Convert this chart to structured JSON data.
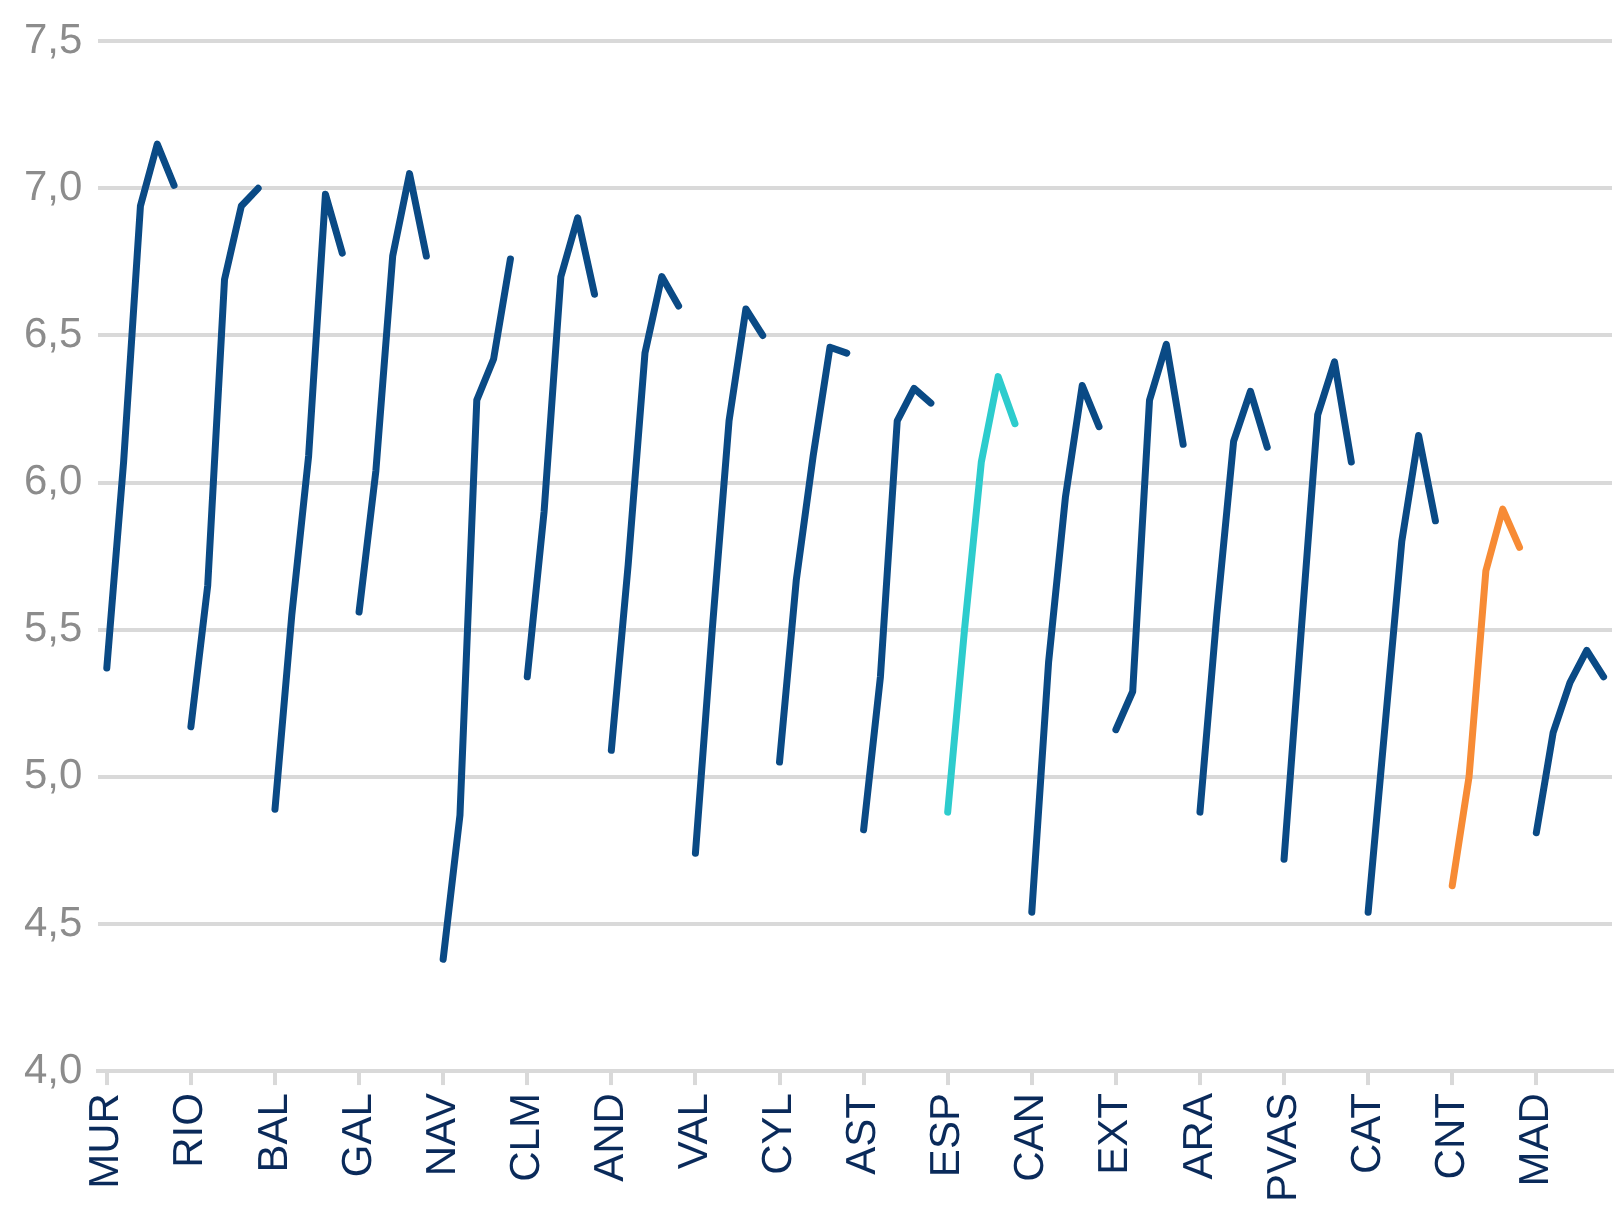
{
  "chart_data": {
    "type": "line",
    "categories": [
      "MUR",
      null,
      null,
      null,
      null,
      "RIO",
      null,
      null,
      null,
      null,
      "BAL",
      null,
      null,
      null,
      null,
      "GAL",
      null,
      null,
      null,
      null,
      "NAV",
      null,
      null,
      null,
      null,
      "CLM",
      null,
      null,
      null,
      null,
      "AND",
      null,
      null,
      null,
      null,
      "VAL",
      null,
      null,
      null,
      null,
      "CYL",
      null,
      null,
      null,
      null,
      "AST",
      null,
      null,
      null,
      null,
      "ESP",
      null,
      null,
      null,
      null,
      "CAN",
      null,
      null,
      null,
      null,
      "EXT",
      null,
      null,
      null,
      null,
      "ARA",
      null,
      null,
      null,
      null,
      "PVAS",
      null,
      null,
      null,
      null,
      "CAT",
      null,
      null,
      null,
      null,
      "CNT",
      null,
      null,
      null,
      null,
      "MAD",
      null,
      null,
      null,
      null
    ],
    "series": [
      {
        "color": "#0a4a85",
        "values": [
          5.37,
          6.07,
          6.94,
          7.15,
          7.01,
          null,
          null,
          null,
          null,
          null,
          null,
          null,
          null,
          null,
          null,
          null,
          null,
          null,
          null,
          null,
          null,
          null,
          null,
          null,
          null,
          null,
          null,
          null,
          null,
          null,
          null,
          null,
          null,
          null,
          null,
          null,
          null,
          null,
          null,
          null,
          null,
          null,
          null,
          null,
          null,
          null,
          null,
          null,
          null,
          null,
          null,
          null,
          null,
          null,
          null,
          null,
          null,
          null,
          null,
          null,
          null,
          null,
          null,
          null,
          null,
          null,
          null,
          null,
          null,
          null,
          null,
          null,
          null,
          null,
          null,
          null,
          null,
          null,
          null,
          null,
          null,
          null,
          null,
          null,
          null,
          null,
          null,
          null,
          null,
          null
        ]
      },
      {
        "color": "#0a4a85",
        "values": [
          null,
          null,
          null,
          null,
          null,
          5.17,
          5.65,
          6.69,
          6.94,
          7.0,
          null,
          null,
          null,
          null,
          null,
          null,
          null,
          null,
          null,
          null,
          null,
          null,
          null,
          null,
          null,
          null,
          null,
          null,
          null,
          null,
          null,
          null,
          null,
          null,
          null,
          null,
          null,
          null,
          null,
          null,
          null,
          null,
          null,
          null,
          null,
          null,
          null,
          null,
          null,
          null,
          null,
          null,
          null,
          null,
          null,
          null,
          null,
          null,
          null,
          null,
          null,
          null,
          null,
          null,
          null,
          null,
          null,
          null,
          null,
          null,
          null,
          null,
          null,
          null,
          null,
          null,
          null,
          null,
          null,
          null,
          null,
          null,
          null,
          null,
          null,
          null,
          null,
          null,
          null,
          null
        ]
      },
      {
        "color": "#0a4a85",
        "values": [
          null,
          null,
          null,
          null,
          null,
          null,
          null,
          null,
          null,
          null,
          4.89,
          5.55,
          6.09,
          6.98,
          6.78,
          null,
          null,
          null,
          null,
          null,
          null,
          null,
          null,
          null,
          null,
          null,
          null,
          null,
          null,
          null,
          null,
          null,
          null,
          null,
          null,
          null,
          null,
          null,
          null,
          null,
          null,
          null,
          null,
          null,
          null,
          null,
          null,
          null,
          null,
          null,
          null,
          null,
          null,
          null,
          null,
          null,
          null,
          null,
          null,
          null,
          null,
          null,
          null,
          null,
          null,
          null,
          null,
          null,
          null,
          null,
          null,
          null,
          null,
          null,
          null,
          null,
          null,
          null,
          null,
          null,
          null,
          null,
          null,
          null,
          null,
          null,
          null,
          null,
          null,
          null
        ]
      },
      {
        "color": "#0a4a85",
        "values": [
          null,
          null,
          null,
          null,
          null,
          null,
          null,
          null,
          null,
          null,
          null,
          null,
          null,
          null,
          null,
          5.56,
          6.04,
          6.77,
          7.05,
          6.77,
          null,
          null,
          null,
          null,
          null,
          null,
          null,
          null,
          null,
          null,
          null,
          null,
          null,
          null,
          null,
          null,
          null,
          null,
          null,
          null,
          null,
          null,
          null,
          null,
          null,
          null,
          null,
          null,
          null,
          null,
          null,
          null,
          null,
          null,
          null,
          null,
          null,
          null,
          null,
          null,
          null,
          null,
          null,
          null,
          null,
          null,
          null,
          null,
          null,
          null,
          null,
          null,
          null,
          null,
          null,
          null,
          null,
          null,
          null,
          null,
          null,
          null,
          null,
          null,
          null,
          null,
          null,
          null,
          null,
          null
        ]
      },
      {
        "color": "#0a4a85",
        "values": [
          null,
          null,
          null,
          null,
          null,
          null,
          null,
          null,
          null,
          null,
          null,
          null,
          null,
          null,
          null,
          null,
          null,
          null,
          null,
          null,
          4.38,
          4.87,
          6.28,
          6.42,
          6.76,
          null,
          null,
          null,
          null,
          null,
          null,
          null,
          null,
          null,
          null,
          null,
          null,
          null,
          null,
          null,
          null,
          null,
          null,
          null,
          null,
          null,
          null,
          null,
          null,
          null,
          null,
          null,
          null,
          null,
          null,
          null,
          null,
          null,
          null,
          null,
          null,
          null,
          null,
          null,
          null,
          null,
          null,
          null,
          null,
          null,
          null,
          null,
          null,
          null,
          null,
          null,
          null,
          null,
          null,
          null,
          null,
          null,
          null,
          null,
          null,
          null,
          null,
          null,
          null,
          null
        ]
      },
      {
        "color": "#0a4a85",
        "values": [
          null,
          null,
          null,
          null,
          null,
          null,
          null,
          null,
          null,
          null,
          null,
          null,
          null,
          null,
          null,
          null,
          null,
          null,
          null,
          null,
          null,
          null,
          null,
          null,
          null,
          5.34,
          5.9,
          6.7,
          6.9,
          6.64,
          null,
          null,
          null,
          null,
          null,
          null,
          null,
          null,
          null,
          null,
          null,
          null,
          null,
          null,
          null,
          null,
          null,
          null,
          null,
          null,
          null,
          null,
          null,
          null,
          null,
          null,
          null,
          null,
          null,
          null,
          null,
          null,
          null,
          null,
          null,
          null,
          null,
          null,
          null,
          null,
          null,
          null,
          null,
          null,
          null,
          null,
          null,
          null,
          null,
          null,
          null,
          null,
          null,
          null,
          null,
          null,
          null,
          null,
          null,
          null
        ]
      },
      {
        "color": "#0a4a85",
        "values": [
          null,
          null,
          null,
          null,
          null,
          null,
          null,
          null,
          null,
          null,
          null,
          null,
          null,
          null,
          null,
          null,
          null,
          null,
          null,
          null,
          null,
          null,
          null,
          null,
          null,
          null,
          null,
          null,
          null,
          null,
          5.09,
          5.72,
          6.44,
          6.7,
          6.6,
          null,
          null,
          null,
          null,
          null,
          null,
          null,
          null,
          null,
          null,
          null,
          null,
          null,
          null,
          null,
          null,
          null,
          null,
          null,
          null,
          null,
          null,
          null,
          null,
          null,
          null,
          null,
          null,
          null,
          null,
          null,
          null,
          null,
          null,
          null,
          null,
          null,
          null,
          null,
          null,
          null,
          null,
          null,
          null,
          null,
          null,
          null,
          null,
          null,
          null,
          null,
          null,
          null,
          null,
          null
        ]
      },
      {
        "color": "#0a4a85",
        "values": [
          null,
          null,
          null,
          null,
          null,
          null,
          null,
          null,
          null,
          null,
          null,
          null,
          null,
          null,
          null,
          null,
          null,
          null,
          null,
          null,
          null,
          null,
          null,
          null,
          null,
          null,
          null,
          null,
          null,
          null,
          null,
          null,
          null,
          null,
          null,
          4.74,
          5.5,
          6.21,
          6.59,
          6.5,
          null,
          null,
          null,
          null,
          null,
          null,
          null,
          null,
          null,
          null,
          null,
          null,
          null,
          null,
          null,
          null,
          null,
          null,
          null,
          null,
          null,
          null,
          null,
          null,
          null,
          null,
          null,
          null,
          null,
          null,
          null,
          null,
          null,
          null,
          null,
          null,
          null,
          null,
          null,
          null,
          null,
          null,
          null,
          null,
          null,
          null,
          null,
          null,
          null,
          null
        ]
      },
      {
        "color": "#0a4a85",
        "values": [
          null,
          null,
          null,
          null,
          null,
          null,
          null,
          null,
          null,
          null,
          null,
          null,
          null,
          null,
          null,
          null,
          null,
          null,
          null,
          null,
          null,
          null,
          null,
          null,
          null,
          null,
          null,
          null,
          null,
          null,
          null,
          null,
          null,
          null,
          null,
          null,
          null,
          null,
          null,
          null,
          5.05,
          5.67,
          6.09,
          6.46,
          6.44,
          null,
          null,
          null,
          null,
          null,
          null,
          null,
          null,
          null,
          null,
          null,
          null,
          null,
          null,
          null,
          null,
          null,
          null,
          null,
          null,
          null,
          null,
          null,
          null,
          null,
          null,
          null,
          null,
          null,
          null,
          null,
          null,
          null,
          null,
          null,
          null,
          null,
          null,
          null,
          null,
          null,
          null,
          null,
          null,
          null
        ]
      },
      {
        "color": "#0a4a85",
        "values": [
          null,
          null,
          null,
          null,
          null,
          null,
          null,
          null,
          null,
          null,
          null,
          null,
          null,
          null,
          null,
          null,
          null,
          null,
          null,
          null,
          null,
          null,
          null,
          null,
          null,
          null,
          null,
          null,
          null,
          null,
          null,
          null,
          null,
          null,
          null,
          null,
          null,
          null,
          null,
          null,
          null,
          null,
          null,
          null,
          null,
          4.82,
          5.34,
          6.21,
          6.32,
          6.27,
          null,
          null,
          null,
          null,
          null,
          null,
          null,
          null,
          null,
          null,
          null,
          null,
          null,
          null,
          null,
          null,
          null,
          null,
          null,
          null,
          null,
          null,
          null,
          null,
          null,
          null,
          null,
          null,
          null,
          null,
          null,
          null,
          null,
          null,
          null,
          null,
          null,
          null,
          null,
          null
        ]
      },
      {
        "color": "#2dcccd",
        "values": [
          null,
          null,
          null,
          null,
          null,
          null,
          null,
          null,
          null,
          null,
          null,
          null,
          null,
          null,
          null,
          null,
          null,
          null,
          null,
          null,
          null,
          null,
          null,
          null,
          null,
          null,
          null,
          null,
          null,
          null,
          null,
          null,
          null,
          null,
          null,
          null,
          null,
          null,
          null,
          null,
          null,
          null,
          null,
          null,
          null,
          null,
          null,
          null,
          null,
          null,
          4.88,
          5.5,
          6.07,
          6.36,
          6.2,
          null,
          null,
          null,
          null,
          null,
          null,
          null,
          null,
          null,
          null,
          null,
          null,
          null,
          null,
          null,
          null,
          null,
          null,
          null,
          null,
          null,
          null,
          null,
          null,
          null,
          null,
          null,
          null,
          null,
          null,
          null,
          null,
          null,
          null,
          null
        ]
      },
      {
        "color": "#0a4a85",
        "values": [
          null,
          null,
          null,
          null,
          null,
          null,
          null,
          null,
          null,
          null,
          null,
          null,
          null,
          null,
          null,
          null,
          null,
          null,
          null,
          null,
          null,
          null,
          null,
          null,
          null,
          null,
          null,
          null,
          null,
          null,
          null,
          null,
          null,
          null,
          null,
          null,
          null,
          null,
          null,
          null,
          null,
          null,
          null,
          null,
          null,
          null,
          null,
          null,
          null,
          null,
          null,
          null,
          null,
          null,
          null,
          4.54,
          5.39,
          5.95,
          6.33,
          6.19,
          null,
          null,
          null,
          null,
          null,
          null,
          null,
          null,
          null,
          null,
          null,
          null,
          null,
          null,
          null,
          null,
          null,
          null,
          null,
          null,
          null,
          null,
          null,
          null,
          null,
          null,
          null,
          null,
          null,
          null
        ]
      },
      {
        "color": "#0a4a85",
        "values": [
          null,
          null,
          null,
          null,
          null,
          null,
          null,
          null,
          null,
          null,
          null,
          null,
          null,
          null,
          null,
          null,
          null,
          null,
          null,
          null,
          null,
          null,
          null,
          null,
          null,
          null,
          null,
          null,
          null,
          null,
          null,
          null,
          null,
          null,
          null,
          null,
          null,
          null,
          null,
          null,
          null,
          null,
          null,
          null,
          null,
          null,
          null,
          null,
          null,
          null,
          null,
          null,
          null,
          null,
          null,
          null,
          null,
          null,
          null,
          null,
          5.16,
          5.29,
          6.28,
          6.47,
          6.13,
          null,
          null,
          null,
          null,
          null,
          null,
          null,
          null,
          null,
          null,
          null,
          null,
          null,
          null,
          null,
          null,
          null,
          null,
          null,
          null,
          null,
          null,
          null,
          null,
          null
        ]
      },
      {
        "color": "#0a4a85",
        "values": [
          null,
          null,
          null,
          null,
          null,
          null,
          null,
          null,
          null,
          null,
          null,
          null,
          null,
          null,
          null,
          null,
          null,
          null,
          null,
          null,
          null,
          null,
          null,
          null,
          null,
          null,
          null,
          null,
          null,
          null,
          null,
          null,
          null,
          null,
          null,
          null,
          null,
          null,
          null,
          null,
          null,
          null,
          null,
          null,
          null,
          null,
          null,
          null,
          null,
          null,
          null,
          null,
          null,
          null,
          null,
          null,
          null,
          null,
          null,
          null,
          null,
          null,
          null,
          null,
          null,
          4.88,
          5.55,
          6.14,
          6.31,
          6.12,
          null,
          null,
          null,
          null,
          null,
          null,
          null,
          null,
          null,
          null,
          null,
          null,
          null,
          null,
          null,
          null,
          null,
          null,
          null,
          null
        ]
      },
      {
        "color": "#0a4a85",
        "values": [
          null,
          null,
          null,
          null,
          null,
          null,
          null,
          null,
          null,
          null,
          null,
          null,
          null,
          null,
          null,
          null,
          null,
          null,
          null,
          null,
          null,
          null,
          null,
          null,
          null,
          null,
          null,
          null,
          null,
          null,
          null,
          null,
          null,
          null,
          null,
          null,
          null,
          null,
          null,
          null,
          null,
          null,
          null,
          null,
          null,
          null,
          null,
          null,
          null,
          null,
          null,
          null,
          null,
          null,
          null,
          null,
          null,
          null,
          null,
          null,
          null,
          null,
          null,
          null,
          null,
          null,
          null,
          null,
          null,
          null,
          4.72,
          5.48,
          6.23,
          6.41,
          6.07,
          null,
          null,
          null,
          null,
          null,
          null,
          null,
          null,
          null,
          null,
          null,
          null,
          null,
          null,
          null
        ]
      },
      {
        "color": "#0a4a85",
        "values": [
          null,
          null,
          null,
          null,
          null,
          null,
          null,
          null,
          null,
          null,
          null,
          null,
          null,
          null,
          null,
          null,
          null,
          null,
          null,
          null,
          null,
          null,
          null,
          null,
          null,
          null,
          null,
          null,
          null,
          null,
          null,
          null,
          null,
          null,
          null,
          null,
          null,
          null,
          null,
          null,
          null,
          null,
          null,
          null,
          null,
          null,
          null,
          null,
          null,
          null,
          null,
          null,
          null,
          null,
          null,
          null,
          null,
          null,
          null,
          null,
          null,
          null,
          null,
          null,
          null,
          null,
          null,
          null,
          null,
          null,
          null,
          null,
          null,
          null,
          null,
          4.54,
          5.17,
          5.8,
          6.16,
          5.87,
          null,
          null,
          null,
          null,
          null,
          null,
          null,
          null,
          null,
          null
        ]
      },
      {
        "color": "#f78b35",
        "values": [
          null,
          null,
          null,
          null,
          null,
          null,
          null,
          null,
          null,
          null,
          null,
          null,
          null,
          null,
          null,
          null,
          null,
          null,
          null,
          null,
          null,
          null,
          null,
          null,
          null,
          null,
          null,
          null,
          null,
          null,
          null,
          null,
          null,
          null,
          null,
          null,
          null,
          null,
          null,
          null,
          null,
          null,
          null,
          null,
          null,
          null,
          null,
          null,
          null,
          null,
          null,
          null,
          null,
          null,
          null,
          null,
          null,
          null,
          null,
          null,
          null,
          null,
          null,
          null,
          null,
          null,
          null,
          null,
          null,
          null,
          null,
          null,
          null,
          null,
          null,
          null,
          null,
          null,
          null,
          null,
          4.63,
          5.0,
          5.7,
          5.91,
          5.78,
          null,
          null,
          null,
          null,
          null
        ]
      },
      {
        "color": "#0a4a85",
        "values": [
          null,
          null,
          null,
          null,
          null,
          null,
          null,
          null,
          null,
          null,
          null,
          null,
          null,
          null,
          null,
          null,
          null,
          null,
          null,
          null,
          null,
          null,
          null,
          null,
          null,
          null,
          null,
          null,
          null,
          null,
          null,
          null,
          null,
          null,
          null,
          null,
          null,
          null,
          null,
          null,
          null,
          null,
          null,
          null,
          null,
          null,
          null,
          null,
          null,
          null,
          null,
          null,
          null,
          null,
          null,
          null,
          null,
          null,
          null,
          null,
          null,
          null,
          null,
          null,
          null,
          null,
          null,
          null,
          null,
          null,
          null,
          null,
          null,
          null,
          null,
          null,
          null,
          null,
          null,
          null,
          null,
          null,
          null,
          null,
          null,
          4.81,
          5.15,
          5.32,
          5.43,
          5.34
        ]
      }
    ],
    "ylim": [
      4.0,
      7.5
    ],
    "yticks": [
      {
        "value": 4.0,
        "label": "4,0"
      },
      {
        "value": 4.5,
        "label": "4,5"
      },
      {
        "value": 5.0,
        "label": "5,0"
      },
      {
        "value": 5.5,
        "label": "5,5"
      },
      {
        "value": 6.0,
        "label": "6,0"
      },
      {
        "value": 6.5,
        "label": "6,5"
      },
      {
        "value": 7.0,
        "label": "7,0"
      },
      {
        "value": 7.5,
        "label": "7,5"
      }
    ],
    "grid": "y",
    "legend": false,
    "marker": "none",
    "line_style": "solid"
  }
}
